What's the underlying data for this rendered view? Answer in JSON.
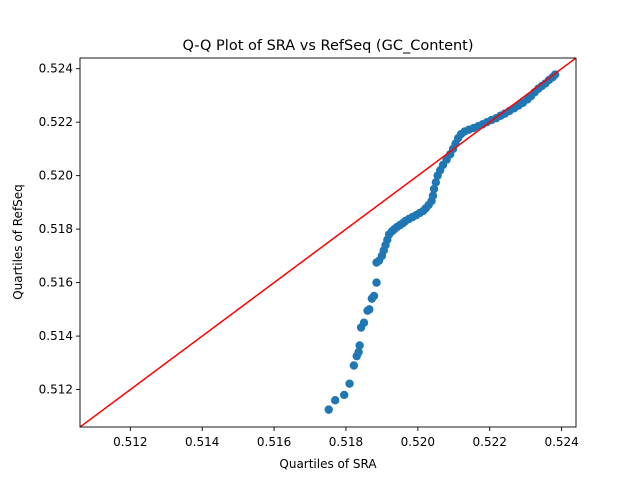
{
  "chart_data": {
    "type": "scatter",
    "title": "Q-Q Plot of SRA vs RefSeq (GC_Content)",
    "xlabel": "Quartiles of SRA",
    "ylabel": "Quartiles of RefSeq",
    "xlim": [
      0.5106,
      0.5244
    ],
    "ylim": [
      0.5106,
      0.5244
    ],
    "xticks": [
      "0.512",
      "0.514",
      "0.516",
      "0.518",
      "0.520",
      "0.522",
      "0.524"
    ],
    "yticks": [
      "0.512",
      "0.514",
      "0.516",
      "0.518",
      "0.520",
      "0.522",
      "0.524"
    ],
    "grid": false,
    "point_color": "#1f77b4",
    "reference_line": {
      "from": [
        0.5106,
        0.5106
      ],
      "to": [
        0.5244,
        0.5244
      ],
      "color": "#ff0000"
    },
    "points": [
      [
        0.51752,
        0.51125
      ],
      [
        0.5177,
        0.5116
      ],
      [
        0.51795,
        0.5118
      ],
      [
        0.5181,
        0.51222
      ],
      [
        0.51822,
        0.5129
      ],
      [
        0.5183,
        0.51325
      ],
      [
        0.51835,
        0.5134
      ],
      [
        0.51838,
        0.51365
      ],
      [
        0.51842,
        0.51432
      ],
      [
        0.5185,
        0.5145
      ],
      [
        0.5186,
        0.51495
      ],
      [
        0.51865,
        0.515
      ],
      [
        0.51872,
        0.5154
      ],
      [
        0.51878,
        0.5155
      ],
      [
        0.51885,
        0.516
      ],
      [
        0.51885,
        0.51675
      ],
      [
        0.51892,
        0.51682
      ],
      [
        0.519,
        0.517
      ],
      [
        0.51905,
        0.5172
      ],
      [
        0.5191,
        0.5174
      ],
      [
        0.51915,
        0.5176
      ],
      [
        0.5192,
        0.5178
      ],
      [
        0.51928,
        0.51792
      ],
      [
        0.51935,
        0.518
      ],
      [
        0.51942,
        0.51808
      ],
      [
        0.5195,
        0.51815
      ],
      [
        0.51958,
        0.51822
      ],
      [
        0.51965,
        0.5183
      ],
      [
        0.51975,
        0.51838
      ],
      [
        0.51985,
        0.51845
      ],
      [
        0.51995,
        0.51852
      ],
      [
        0.52005,
        0.5186
      ],
      [
        0.52015,
        0.51868
      ],
      [
        0.52022,
        0.51878
      ],
      [
        0.5203,
        0.5189
      ],
      [
        0.52038,
        0.51905
      ],
      [
        0.52042,
        0.51925
      ],
      [
        0.52045,
        0.5195
      ],
      [
        0.5205,
        0.51975
      ],
      [
        0.52055,
        0.52
      ],
      [
        0.52062,
        0.5202
      ],
      [
        0.5207,
        0.5204
      ],
      [
        0.5208,
        0.5206
      ],
      [
        0.5209,
        0.5208
      ],
      [
        0.52098,
        0.521
      ],
      [
        0.52105,
        0.5212
      ],
      [
        0.52112,
        0.5214
      ],
      [
        0.5212,
        0.52155
      ],
      [
        0.5213,
        0.52165
      ],
      [
        0.52142,
        0.52172
      ],
      [
        0.52155,
        0.52178
      ],
      [
        0.52168,
        0.52185
      ],
      [
        0.5218,
        0.52192
      ],
      [
        0.52192,
        0.522
      ],
      [
        0.52205,
        0.52208
      ],
      [
        0.52218,
        0.52215
      ],
      [
        0.5223,
        0.52224
      ],
      [
        0.52242,
        0.52232
      ],
      [
        0.52255,
        0.52242
      ],
      [
        0.52268,
        0.52252
      ],
      [
        0.5228,
        0.52262
      ],
      [
        0.52292,
        0.52272
      ],
      [
        0.52305,
        0.52285
      ],
      [
        0.52315,
        0.52298
      ],
      [
        0.52325,
        0.52312
      ],
      [
        0.52335,
        0.52325
      ],
      [
        0.52345,
        0.52335
      ],
      [
        0.52355,
        0.52345
      ],
      [
        0.52365,
        0.52358
      ],
      [
        0.52375,
        0.52368
      ],
      [
        0.52382,
        0.52378
      ]
    ]
  }
}
